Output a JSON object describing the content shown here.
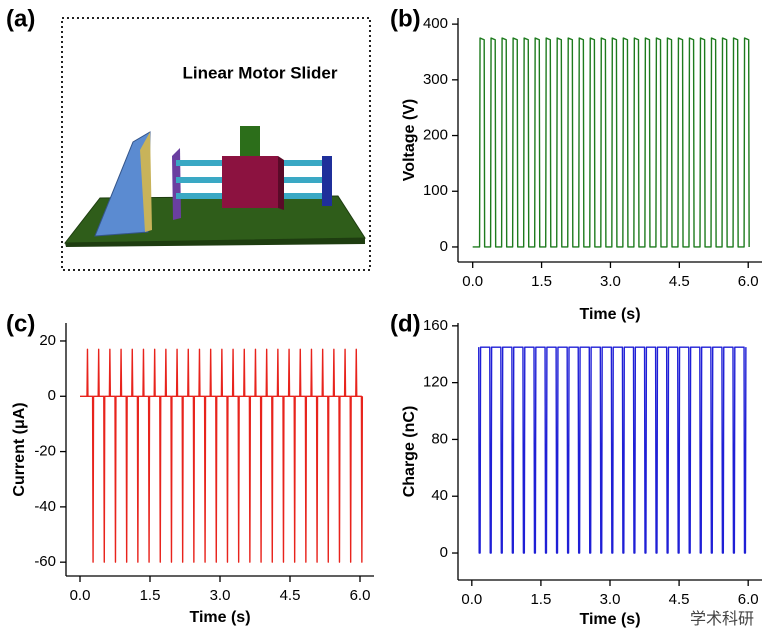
{
  "diagram": {
    "panel_label": "(a)",
    "title": "Linear Motor Slider"
  },
  "watermark": "学术科研",
  "chart_data": [
    {
      "type": "line",
      "panel_label": "(b)",
      "xlabel": "Time (s)",
      "ylabel": "Voltage (V)",
      "xlim": [
        -0.32,
        6.3
      ],
      "ylim": [
        -27,
        411
      ],
      "xticks": [
        {
          "value": 0,
          "label": "0.0"
        },
        1.5,
        {
          "value": 3,
          "label": "3.0"
        },
        4.5,
        {
          "value": 6,
          "label": "6.0"
        }
      ],
      "yticks": [
        0,
        100,
        200,
        300,
        400
      ],
      "x": [
        0,
        0.15,
        0.16,
        0.25,
        0.26,
        0.39,
        0.4,
        0.49,
        0.5,
        0.63,
        0.64,
        0.73,
        0.74,
        0.87,
        0.88,
        0.97,
        0.98,
        1.11,
        1.12,
        1.21,
        1.22,
        1.35,
        1.36,
        1.45,
        1.46,
        1.59,
        1.6,
        1.69,
        1.7,
        1.83,
        1.84,
        1.93,
        1.94,
        2.07,
        2.08,
        2.17,
        2.18,
        2.31,
        2.32,
        2.41,
        2.42,
        2.55,
        2.56,
        2.65,
        2.66,
        2.79,
        2.8,
        2.89,
        2.9,
        3.03,
        3.04,
        3.13,
        3.14,
        3.27,
        3.28,
        3.37,
        3.38,
        3.51,
        3.52,
        3.61,
        3.62,
        3.75,
        3.76,
        3.85,
        3.86,
        3.99,
        4.0,
        4.09,
        4.1,
        4.23,
        4.24,
        4.33,
        4.34,
        4.47,
        4.48,
        4.57,
        4.58,
        4.71,
        4.72,
        4.81,
        4.82,
        4.95,
        4.96,
        5.05,
        5.06,
        5.19,
        5.2,
        5.29,
        5.3,
        5.43,
        5.44,
        5.53,
        5.54,
        5.67,
        5.68,
        5.77,
        5.78,
        5.91,
        5.92,
        6.01,
        6.02
      ],
      "series": [
        {
          "color": "#1e7b1e",
          "values": [
            0,
            0,
            375,
            372,
            0,
            0,
            375,
            372,
            0,
            0,
            375,
            372,
            0,
            0,
            375,
            372,
            0,
            0,
            375,
            372,
            0,
            0,
            375,
            372,
            0,
            0,
            375,
            372,
            0,
            0,
            375,
            372,
            0,
            0,
            375,
            372,
            0,
            0,
            375,
            372,
            0,
            0,
            375,
            372,
            0,
            0,
            375,
            372,
            0,
            0,
            375,
            372,
            0,
            0,
            375,
            372,
            0,
            0,
            375,
            372,
            0,
            0,
            375,
            372,
            0,
            0,
            375,
            372,
            0,
            0,
            375,
            372,
            0,
            0,
            375,
            372,
            0,
            0,
            375,
            372,
            0,
            0,
            375,
            372,
            0,
            0,
            375,
            372,
            0,
            0,
            375,
            372,
            0,
            0,
            375,
            372,
            0,
            0,
            375,
            372,
            0
          ]
        }
      ]
    },
    {
      "type": "line",
      "panel_label": "(c)",
      "xlabel": "Time (s)",
      "ylabel": "Current (μA)",
      "xlim": [
        -0.3,
        6.3
      ],
      "ylim": [
        -65,
        26.5
      ],
      "xticks": [
        {
          "value": 0,
          "label": "0.0"
        },
        1.5,
        {
          "value": 3,
          "label": "3.0"
        },
        4.5,
        {
          "value": 6,
          "label": "6.0"
        }
      ],
      "yticks": [
        -60,
        -40,
        -20,
        0,
        20
      ],
      "x": [
        0,
        0.15,
        0.16,
        0.17,
        0.27,
        0.28,
        0.29,
        0.39,
        0.4,
        0.41,
        0.51,
        0.52,
        0.53,
        0.63,
        0.64,
        0.65,
        0.75,
        0.76,
        0.77,
        0.87,
        0.88,
        0.89,
        0.99,
        1.0,
        1.01,
        1.11,
        1.12,
        1.13,
        1.23,
        1.24,
        1.25,
        1.35,
        1.36,
        1.37,
        1.47,
        1.48,
        1.49,
        1.59,
        1.6,
        1.61,
        1.71,
        1.72,
        1.73,
        1.83,
        1.84,
        1.85,
        1.95,
        1.96,
        1.97,
        2.07,
        2.08,
        2.09,
        2.19,
        2.2,
        2.21,
        2.31,
        2.32,
        2.33,
        2.43,
        2.44,
        2.45,
        2.55,
        2.56,
        2.57,
        2.67,
        2.68,
        2.69,
        2.79,
        2.8,
        2.81,
        2.91,
        2.92,
        2.93,
        3.03,
        3.04,
        3.05,
        3.15,
        3.16,
        3.17,
        3.27,
        3.28,
        3.29,
        3.39,
        3.4,
        3.41,
        3.51,
        3.52,
        3.53,
        3.63,
        3.64,
        3.65,
        3.75,
        3.76,
        3.77,
        3.87,
        3.88,
        3.89,
        3.99,
        4.0,
        4.01,
        4.11,
        4.12,
        4.13,
        4.23,
        4.24,
        4.25,
        4.35,
        4.36,
        4.37,
        4.47,
        4.48,
        4.49,
        4.59,
        4.6,
        4.61,
        4.71,
        4.72,
        4.73,
        4.83,
        4.84,
        4.85,
        4.95,
        4.96,
        4.97,
        5.07,
        5.08,
        5.09,
        5.19,
        5.2,
        5.21,
        5.31,
        5.32,
        5.33,
        5.43,
        5.44,
        5.45,
        5.55,
        5.56,
        5.57,
        5.67,
        5.68,
        5.69,
        5.79,
        5.8,
        5.81,
        5.91,
        5.92,
        5.93,
        6.03,
        6.04,
        6.05
      ],
      "series": [
        {
          "color": "#e8231c",
          "values": [
            0,
            0,
            17,
            0,
            0,
            -60,
            0,
            0,
            17,
            0,
            0,
            -60,
            0,
            0,
            17,
            0,
            0,
            -60,
            0,
            0,
            17,
            0,
            0,
            -60,
            0,
            0,
            17,
            0,
            0,
            -60,
            0,
            0,
            17,
            0,
            0,
            -60,
            0,
            0,
            17,
            0,
            0,
            -60,
            0,
            0,
            17,
            0,
            0,
            -60,
            0,
            0,
            17,
            0,
            0,
            -60,
            0,
            0,
            17,
            0,
            0,
            -60,
            0,
            0,
            17,
            0,
            0,
            -60,
            0,
            0,
            17,
            0,
            0,
            -60,
            0,
            0,
            17,
            0,
            0,
            -60,
            0,
            0,
            17,
            0,
            0,
            -60,
            0,
            0,
            17,
            0,
            0,
            -60,
            0,
            0,
            17,
            0,
            0,
            -60,
            0,
            0,
            17,
            0,
            0,
            -60,
            0,
            0,
            17,
            0,
            0,
            -60,
            0,
            0,
            17,
            0,
            0,
            -60,
            0,
            0,
            17,
            0,
            0,
            -60,
            0,
            0,
            17,
            0,
            0,
            -60,
            0,
            0,
            17,
            0,
            0,
            -60,
            0,
            0,
            17,
            0,
            0,
            -60,
            0,
            0,
            17,
            0,
            0,
            -60,
            0,
            0,
            17,
            0,
            0,
            -60,
            0
          ]
        }
      ]
    },
    {
      "type": "line",
      "panel_label": "(d)",
      "xlabel": "Time (s)",
      "ylabel": "Charge (nC)",
      "xlim": [
        -0.3,
        6.3
      ],
      "ylim": [
        -19,
        162
      ],
      "xticks": [
        {
          "value": 0,
          "label": "0.0"
        },
        1.5,
        {
          "value": 3,
          "label": "3.0"
        },
        4.5,
        {
          "value": 6,
          "label": "6.0"
        }
      ],
      "yticks": [
        0,
        40,
        80,
        120,
        160
      ],
      "x": [
        0.15,
        0.16,
        0.18,
        0.19,
        0.39,
        0.4,
        0.42,
        0.43,
        0.63,
        0.64,
        0.66,
        0.67,
        0.87,
        0.88,
        0.9,
        0.91,
        1.11,
        1.12,
        1.14,
        1.15,
        1.35,
        1.36,
        1.38,
        1.39,
        1.59,
        1.6,
        1.62,
        1.63,
        1.83,
        1.84,
        1.86,
        1.87,
        2.07,
        2.08,
        2.1,
        2.11,
        2.31,
        2.32,
        2.34,
        2.35,
        2.55,
        2.56,
        2.58,
        2.59,
        2.79,
        2.8,
        2.82,
        2.83,
        3.03,
        3.04,
        3.06,
        3.07,
        3.27,
        3.28,
        3.3,
        3.31,
        3.51,
        3.52,
        3.54,
        3.55,
        3.75,
        3.76,
        3.78,
        3.79,
        3.99,
        4.0,
        4.02,
        4.03,
        4.23,
        4.24,
        4.26,
        4.27,
        4.47,
        4.48,
        4.5,
        4.51,
        4.71,
        4.72,
        4.74,
        4.75,
        4.95,
        4.96,
        4.98,
        4.99,
        5.19,
        5.2,
        5.22,
        5.23,
        5.43,
        5.44,
        5.46,
        5.47,
        5.67,
        5.68,
        5.7,
        5.71,
        5.91,
        5.92,
        5.94,
        5.95
      ],
      "series": [
        {
          "color": "#1f1fd6",
          "values": [
            145,
            0,
            0,
            145,
            145,
            0,
            0,
            145,
            145,
            0,
            0,
            145,
            145,
            0,
            0,
            145,
            145,
            0,
            0,
            145,
            145,
            0,
            0,
            145,
            145,
            0,
            0,
            145,
            145,
            0,
            0,
            145,
            145,
            0,
            0,
            145,
            145,
            0,
            0,
            145,
            145,
            0,
            0,
            145,
            145,
            0,
            0,
            145,
            145,
            0,
            0,
            145,
            145,
            0,
            0,
            145,
            145,
            0,
            0,
            145,
            145,
            0,
            0,
            145,
            145,
            0,
            0,
            145,
            145,
            0,
            0,
            145,
            145,
            0,
            0,
            145,
            145,
            0,
            0,
            145,
            145,
            0,
            0,
            145,
            145,
            0,
            0,
            145,
            145,
            0,
            0,
            145,
            145,
            0,
            0,
            145,
            145,
            0,
            0,
            145
          ]
        }
      ]
    }
  ]
}
